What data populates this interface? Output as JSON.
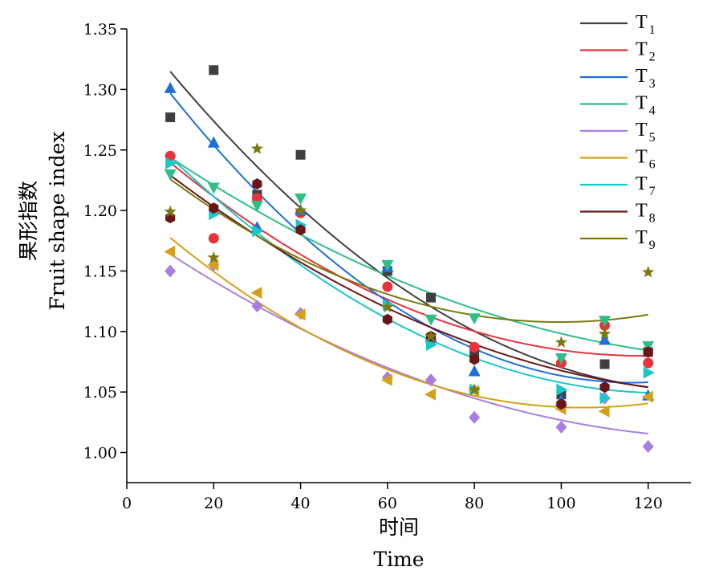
{
  "chart_data": {
    "type": "scatter",
    "fit": "quadratic",
    "ylabel": "果形指数",
    "ylabel_en": "Fruit shape index",
    "xlabel": "时间",
    "xlabel_en": "Time",
    "xlim": [
      0,
      130
    ],
    "ylim": [
      0.975,
      1.35
    ],
    "x_ticks": [
      0,
      20,
      40,
      60,
      80,
      100,
      120
    ],
    "x_tick_labels": [
      "0",
      "20",
      "40",
      "60",
      "80",
      "100",
      "120"
    ],
    "y_ticks": [
      1.0,
      1.05,
      1.1,
      1.15,
      1.2,
      1.25,
      1.3,
      1.35
    ],
    "y_tick_labels": [
      "1.00",
      "1.05",
      "1.10",
      "1.15",
      "1.20",
      "1.25",
      "1.30",
      "1.35"
    ],
    "grid": false,
    "legend_position": "top-right",
    "x": [
      10,
      20,
      30,
      40,
      60,
      70,
      80,
      100,
      110,
      120
    ],
    "series": [
      {
        "name": "T",
        "sub": "1",
        "color": "#404040",
        "marker": "square",
        "values": [
          1.277,
          1.316,
          1.213,
          1.246,
          1.15,
          1.128,
          1.082,
          1.048,
          1.073,
          1.083
        ],
        "fit": [
          1.312,
          1.274,
          1.238,
          1.206,
          1.146,
          1.119,
          1.095,
          1.072,
          1.059,
          1.056
        ]
      },
      {
        "name": "T",
        "sub": "2",
        "color": "#e8333c",
        "marker": "circle",
        "values": [
          1.245,
          1.177,
          1.21,
          1.198,
          1.137,
          1.093,
          1.087,
          1.074,
          1.105,
          1.074
        ],
        "fit": [
          1.24,
          1.212,
          1.186,
          1.162,
          1.127,
          1.112,
          1.1,
          1.086,
          1.081,
          1.079
        ]
      },
      {
        "name": "T",
        "sub": "3",
        "color": "#1e6fd9",
        "marker": "triangle-up",
        "values": [
          1.301,
          1.256,
          1.186,
          1.2,
          1.153,
          1.095,
          1.067,
          1.043,
          1.093,
          1.047
        ]
      },
      {
        "name": "T",
        "sub": "4",
        "color": "#2fbf86",
        "marker": "triangle-down",
        "values": [
          1.23,
          1.219,
          1.204,
          1.21,
          1.155,
          1.11,
          1.111,
          1.078,
          1.109,
          1.088
        ]
      },
      {
        "name": "T",
        "sub": "5",
        "color": "#a97ee0",
        "marker": "diamond",
        "values": [
          1.15,
          1.155,
          1.121,
          1.115,
          1.062,
          1.06,
          1.029,
          1.021,
          1.045,
          1.005
        ]
      },
      {
        "name": "T",
        "sub": "6",
        "color": "#d4a017",
        "marker": "triangle-left",
        "values": [
          1.166,
          1.155,
          1.132,
          1.114,
          1.06,
          1.048,
          1.051,
          1.036,
          1.034,
          1.046
        ]
      },
      {
        "name": "T",
        "sub": "7",
        "color": "#18c8c8",
        "marker": "triangle-right",
        "values": [
          1.239,
          1.197,
          1.183,
          1.188,
          1.122,
          1.089,
          1.052,
          1.052,
          1.045,
          1.066
        ]
      },
      {
        "name": "T",
        "sub": "8",
        "color": "#6b1616",
        "marker": "hexagon",
        "values": [
          1.194,
          1.202,
          1.222,
          1.184,
          1.11,
          1.096,
          1.077,
          1.04,
          1.054,
          1.083
        ]
      },
      {
        "name": "T",
        "sub": "9",
        "color": "#7a7a10",
        "marker": "star",
        "values": [
          1.199,
          1.161,
          1.251,
          1.2,
          1.12,
          1.096,
          1.052,
          1.091,
          1.098,
          1.149
        ],
        "fit": [
          1.226,
          1.201,
          1.179,
          1.16,
          1.131,
          1.12,
          1.113,
          1.109,
          1.11,
          1.113
        ]
      }
    ]
  }
}
